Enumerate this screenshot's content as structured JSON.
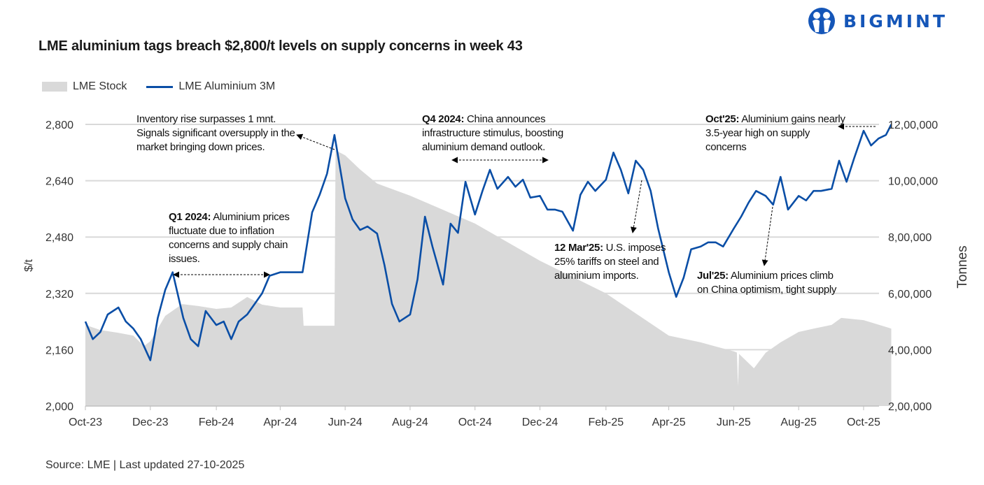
{
  "title": "LME aluminium tags breach $2,800/t levels on supply concerns in week 43",
  "logo": {
    "text": "BIGMINT",
    "color": "#1556b8"
  },
  "source": "Source: LME | Last updated 27-10-2025",
  "annotations": [
    {
      "bold": "",
      "text": "Inventory rise surpasses 1 mnt. Signals significant oversupply in the market bringing down prices."
    },
    {
      "bold": "Q1 2024:",
      "text": " Aluminium prices fluctuate due to inflation concerns and supply chain issues."
    },
    {
      "bold": "Q4 2024:",
      "text": " China announces infrastructure stimulus, boosting aluminium demand outlook."
    },
    {
      "bold": "12 Mar'25:",
      "text": " U.S. imposes 25% tariffs on steel and aluminium imports."
    },
    {
      "bold": "Jul'25:",
      "text": " Aluminium prices climb on China optimism, tight supply"
    },
    {
      "bold": "Oct'25:",
      "text": " Aluminium gains nearly 3.5-year high on supply concerns"
    }
  ],
  "chart_data": {
    "type": "line+area",
    "title": "LME aluminium tags breach $2,800/t levels on supply concerns in week 43",
    "ylabel": "$/t",
    "y2label": "Tonnes",
    "ylim": [
      2000,
      2800
    ],
    "y2lim": [
      200000,
      1200000
    ],
    "yticks": [
      "2,000",
      "2,160",
      "2,320",
      "2,480",
      "2,640",
      "2,800"
    ],
    "yticks_values": [
      2000,
      2160,
      2320,
      2480,
      2640,
      2800
    ],
    "y2ticks": [
      "2,00,000",
      "4,00,000",
      "6,00,000",
      "8,00,000",
      "10,00,000",
      "12,00,000"
    ],
    "y2ticks_values": [
      200000,
      400000,
      600000,
      800000,
      1000000,
      1200000
    ],
    "xticks": [
      "Oct-23",
      "Dec-23",
      "Feb-24",
      "Apr-24",
      "Jun-24",
      "Aug-24",
      "Oct-24",
      "Dec-24",
      "Feb-25",
      "Apr-25",
      "Jun-25",
      "Aug-25",
      "Oct-25"
    ],
    "xticks_dates": [
      "2023-10-01",
      "2023-12-01",
      "2024-02-01",
      "2024-04-01",
      "2024-06-01",
      "2024-08-01",
      "2024-10-01",
      "2024-12-01",
      "2025-02-01",
      "2025-04-01",
      "2025-06-01",
      "2025-08-01",
      "2025-10-01"
    ],
    "xlim": [
      "2023-10-01",
      "2025-10-27"
    ],
    "grid": true,
    "legend": "top-left",
    "series": [
      {
        "name": "LME Stock",
        "type": "area",
        "axis": "right",
        "color": "#d9d9d9",
        "x": [
          "2023-10-01",
          "2023-10-15",
          "2023-11-01",
          "2023-11-15",
          "2023-11-25",
          "2023-12-01",
          "2023-12-15",
          "2023-12-31",
          "2024-01-15",
          "2024-02-01",
          "2024-02-15",
          "2024-03-01",
          "2024-03-15",
          "2024-04-01",
          "2024-04-22",
          "2024-04-23",
          "2024-05-22",
          "2024-05-23",
          "2024-06-01",
          "2024-06-15",
          "2024-07-01",
          "2024-08-01",
          "2024-10-01",
          "2024-12-01",
          "2025-02-01",
          "2025-04-01",
          "2025-05-01",
          "2025-06-01",
          "2025-06-04",
          "2025-06-05",
          "2025-06-06",
          "2025-06-20",
          "2025-07-01",
          "2025-07-15",
          "2025-08-01",
          "2025-08-15",
          "2025-09-01",
          "2025-09-10",
          "2025-10-01",
          "2025-10-27"
        ],
        "values": [
          488000,
          470000,
          460000,
          450000,
          413000,
          430000,
          520000,
          562000,
          555000,
          545000,
          550000,
          587000,
          560000,
          550000,
          550000,
          485000,
          485000,
          1108000,
          1090000,
          1040000,
          990000,
          947000,
          848000,
          716000,
          600000,
          450000,
          426000,
          394000,
          390000,
          270000,
          385000,
          334000,
          389000,
          426000,
          463000,
          475000,
          488000,
          513000,
          505000,
          475000
        ]
      },
      {
        "name": "LME Aluminium 3M",
        "type": "line",
        "axis": "left",
        "color": "#0a4ea6",
        "x": [
          "2023-10-01",
          "2023-10-08",
          "2023-10-15",
          "2023-10-22",
          "2023-11-01",
          "2023-11-08",
          "2023-11-15",
          "2023-11-22",
          "2023-12-01",
          "2023-12-08",
          "2023-12-15",
          "2023-12-22",
          "2024-01-01",
          "2024-01-08",
          "2024-01-15",
          "2024-01-22",
          "2024-02-01",
          "2024-02-08",
          "2024-02-15",
          "2024-02-22",
          "2024-03-01",
          "2024-03-08",
          "2024-03-15",
          "2024-03-22",
          "2024-04-01",
          "2024-04-08",
          "2024-04-15",
          "2024-04-22",
          "2024-05-01",
          "2024-05-08",
          "2024-05-15",
          "2024-05-22",
          "2024-06-01",
          "2024-06-08",
          "2024-06-15",
          "2024-06-22",
          "2024-07-01",
          "2024-07-08",
          "2024-07-15",
          "2024-07-22",
          "2024-08-01",
          "2024-08-08",
          "2024-08-15",
          "2024-08-22",
          "2024-09-01",
          "2024-09-08",
          "2024-09-15",
          "2024-09-22",
          "2024-10-01",
          "2024-10-08",
          "2024-10-15",
          "2024-10-22",
          "2024-11-01",
          "2024-11-08",
          "2024-11-15",
          "2024-11-22",
          "2024-12-01",
          "2024-12-08",
          "2024-12-15",
          "2024-12-22",
          "2025-01-01",
          "2025-01-08",
          "2025-01-15",
          "2025-01-22",
          "2025-02-01",
          "2025-02-08",
          "2025-02-15",
          "2025-02-22",
          "2025-03-01",
          "2025-03-08",
          "2025-03-15",
          "2025-03-22",
          "2025-04-01",
          "2025-04-08",
          "2025-04-15",
          "2025-04-22",
          "2025-05-01",
          "2025-05-08",
          "2025-05-15",
          "2025-05-22",
          "2025-06-01",
          "2025-06-08",
          "2025-06-15",
          "2025-06-22",
          "2025-07-01",
          "2025-07-08",
          "2025-07-15",
          "2025-07-22",
          "2025-08-01",
          "2025-08-08",
          "2025-08-15",
          "2025-08-22",
          "2025-09-01",
          "2025-09-08",
          "2025-09-15",
          "2025-09-22",
          "2025-10-01",
          "2025-10-08",
          "2025-10-15",
          "2025-10-22",
          "2025-10-27"
        ],
        "values": [
          2240,
          2190,
          2210,
          2260,
          2280,
          2240,
          2220,
          2190,
          2130,
          2250,
          2330,
          2380,
          2250,
          2190,
          2170,
          2270,
          2230,
          2240,
          2190,
          2240,
          2260,
          2290,
          2320,
          2370,
          2380,
          2380,
          2380,
          2380,
          2550,
          2600,
          2660,
          2770,
          2590,
          2530,
          2500,
          2510,
          2490,
          2400,
          2290,
          2240,
          2260,
          2360,
          2538,
          2453,
          2345,
          2518,
          2492,
          2637,
          2544,
          2611,
          2671,
          2617,
          2651,
          2623,
          2643,
          2592,
          2597,
          2558,
          2558,
          2552,
          2498,
          2600,
          2637,
          2611,
          2643,
          2720,
          2671,
          2604,
          2697,
          2671,
          2611,
          2504,
          2380,
          2310,
          2365,
          2445,
          2453,
          2465,
          2465,
          2453,
          2504,
          2538,
          2578,
          2611,
          2597,
          2572,
          2651,
          2558,
          2597,
          2584,
          2611,
          2611,
          2617,
          2697,
          2637,
          2703,
          2782,
          2740,
          2760,
          2770,
          2800
        ]
      }
    ]
  }
}
